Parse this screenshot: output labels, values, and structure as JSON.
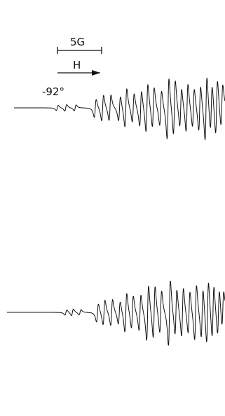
{
  "chart_data": {
    "type": "line",
    "title": "",
    "annotations": {
      "scale_bar_label": "5G",
      "field_arrow_label": "H",
      "temperature_label": "-92°"
    },
    "series": [
      {
        "lines": [
          {
            "x": 0.205,
            "amp": 0.08
          },
          {
            "x": 0.245,
            "amp": 0.1
          },
          {
            "x": 0.29,
            "amp": 0.09
          },
          {
            "x": 0.385,
            "amp": 0.28
          },
          {
            "x": 0.42,
            "amp": 0.4
          },
          {
            "x": 0.455,
            "amp": 0.4
          },
          {
            "x": 0.5,
            "amp": 0.38
          },
          {
            "x": 0.53,
            "amp": 0.6
          },
          {
            "x": 0.565,
            "amp": 0.45
          },
          {
            "x": 0.6,
            "amp": 0.55
          },
          {
            "x": 0.63,
            "amp": 0.75
          },
          {
            "x": 0.66,
            "amp": 0.62
          },
          {
            "x": 0.695,
            "amp": 0.55
          },
          {
            "x": 0.73,
            "amp": 0.95
          },
          {
            "x": 0.76,
            "amp": 0.85
          },
          {
            "x": 0.79,
            "amp": 0.6
          },
          {
            "x": 0.82,
            "amp": 0.75
          },
          {
            "x": 0.85,
            "amp": 0.6
          },
          {
            "x": 0.88,
            "amp": 0.7
          },
          {
            "x": 0.91,
            "amp": 1.0
          },
          {
            "x": 0.935,
            "amp": 0.7
          },
          {
            "x": 0.96,
            "amp": 0.85
          },
          {
            "x": 0.985,
            "amp": 0.65
          }
        ]
      },
      {
        "lines": [
          {
            "x": 0.27,
            "amp": 0.08
          },
          {
            "x": 0.3,
            "amp": 0.1
          },
          {
            "x": 0.335,
            "amp": 0.08
          },
          {
            "x": 0.415,
            "amp": 0.28
          },
          {
            "x": 0.445,
            "amp": 0.38
          },
          {
            "x": 0.48,
            "amp": 0.4
          },
          {
            "x": 0.515,
            "amp": 0.35
          },
          {
            "x": 0.545,
            "amp": 0.6
          },
          {
            "x": 0.575,
            "amp": 0.5
          },
          {
            "x": 0.61,
            "amp": 0.55
          },
          {
            "x": 0.645,
            "amp": 0.85
          },
          {
            "x": 0.675,
            "amp": 0.8
          },
          {
            "x": 0.705,
            "amp": 0.65
          },
          {
            "x": 0.745,
            "amp": 1.0
          },
          {
            "x": 0.775,
            "amp": 0.7
          },
          {
            "x": 0.805,
            "amp": 0.75
          },
          {
            "x": 0.835,
            "amp": 0.65
          },
          {
            "x": 0.865,
            "amp": 0.85
          },
          {
            "x": 0.895,
            "amp": 0.75
          },
          {
            "x": 0.92,
            "amp": 0.95
          },
          {
            "x": 0.945,
            "amp": 0.8
          },
          {
            "x": 0.97,
            "amp": 0.7
          },
          {
            "x": 0.99,
            "amp": 0.55
          }
        ]
      }
    ]
  }
}
